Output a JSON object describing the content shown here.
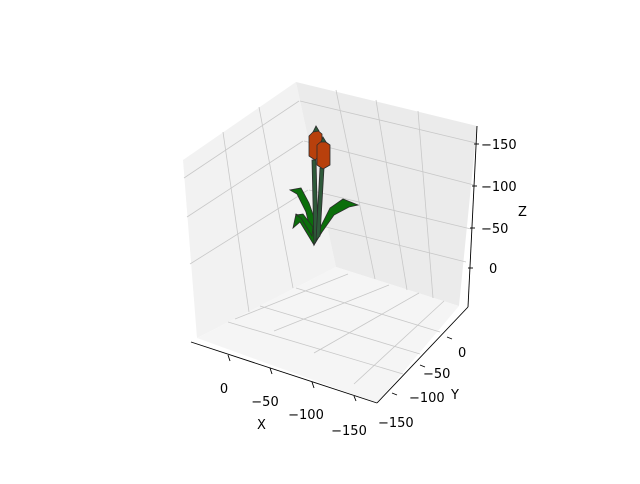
{
  "chart_data": {
    "type": "surface3d",
    "xlabel": "X",
    "ylabel": "Y",
    "zlabel": "Z",
    "x_ticks": [
      "0",
      "−50",
      "−100",
      "−150"
    ],
    "y_ticks": [
      "0",
      "−50",
      "−100",
      "−150"
    ],
    "z_ticks": [
      "0",
      "−50",
      "−100",
      "−150"
    ],
    "grid": true,
    "colors": {
      "leaf": "#0b6e0b",
      "stem": "#2e5a3a",
      "spike": "#b8400c",
      "edge": "#2b2b2b",
      "pane_left": "#f2f2f2",
      "pane_right": "#ebebeb",
      "pane_floor": "#f5f5f5",
      "grid": "#c8c8c8"
    },
    "objects": [
      {
        "name": "stems",
        "color": "stem"
      },
      {
        "name": "leaves",
        "color": "leaf"
      },
      {
        "name": "flower-spikes",
        "color": "spike"
      }
    ]
  }
}
